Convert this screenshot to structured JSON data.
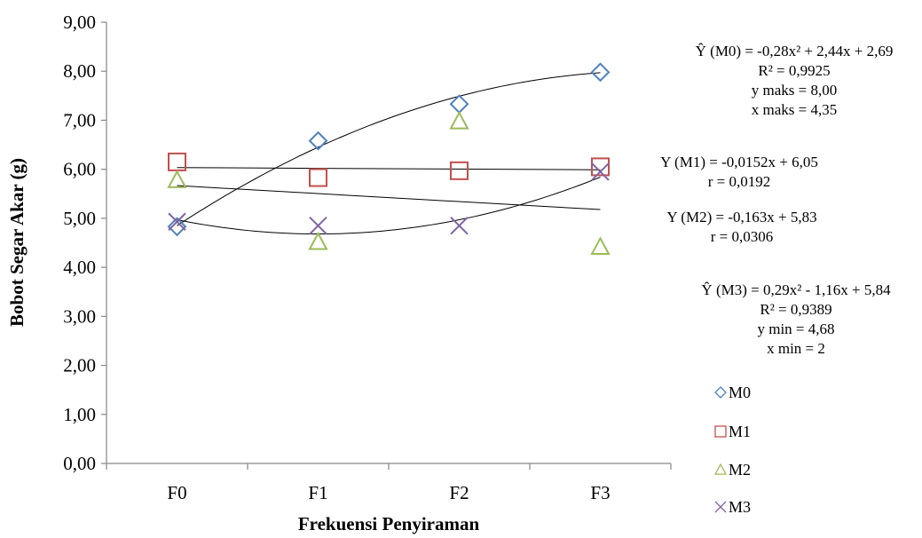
{
  "chart_data": {
    "type": "scatter",
    "xlabel": "Frekuensi Penyiraman",
    "ylabel": "Bobot Segar Akar (g)",
    "categories": [
      "F0",
      "F1",
      "F2",
      "F3"
    ],
    "ylim": [
      0,
      9
    ],
    "yticks": [
      "0,00",
      "1,00",
      "2,00",
      "3,00",
      "4,00",
      "5,00",
      "6,00",
      "7,00",
      "8,00",
      "9,00"
    ],
    "series": [
      {
        "name": "M0",
        "marker": "diamond",
        "color": "#4F81BD",
        "values": [
          4.83,
          6.58,
          7.33,
          7.98
        ]
      },
      {
        "name": "M1",
        "marker": "square",
        "color": "#C0504D",
        "values": [
          6.15,
          5.83,
          5.97,
          6.05
        ]
      },
      {
        "name": "M2",
        "marker": "triangle",
        "color": "#9BBB59",
        "values": [
          5.78,
          4.52,
          6.98,
          4.42
        ]
      },
      {
        "name": "M3",
        "marker": "cross",
        "color": "#8064A2",
        "values": [
          4.93,
          4.85,
          4.85,
          5.95
        ]
      }
    ],
    "trendlines": [
      {
        "series": "M0",
        "kind": "quadratic",
        "coef": [
          -0.28,
          2.44,
          2.69
        ]
      },
      {
        "series": "M1",
        "kind": "linear",
        "coef": [
          -0.0152,
          6.05
        ]
      },
      {
        "series": "M2",
        "kind": "linear",
        "coef": [
          -0.163,
          5.83
        ]
      },
      {
        "series": "M3",
        "kind": "quadratic",
        "coef": [
          0.29,
          -1.16,
          5.84
        ]
      }
    ],
    "annotations": [
      [
        "Ŷ (M0) = -0,28x² + 2,44x + 2,69",
        "R² = 0,9925",
        "y maks = 8,00",
        "x maks = 4,35"
      ],
      [
        "Y (M1) = -0,0152x + 6,05",
        "r = 0,0192"
      ],
      [
        "Y (M2) = -0,163x + 5,83",
        "r = 0,0306"
      ],
      [
        "Ŷ (M3) = 0,29x² - 1,16x + 5,84",
        "R² = 0,9389",
        "y min = 4,68",
        "x min = 2"
      ]
    ],
    "legend": [
      "M0",
      "M1",
      "M2",
      "M3"
    ],
    "legend_position": "right",
    "grid": false
  }
}
